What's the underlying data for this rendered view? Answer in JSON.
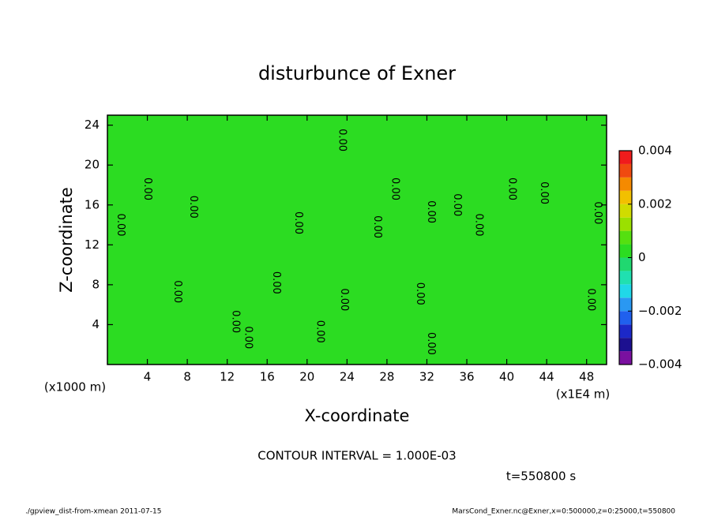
{
  "chart_data": {
    "type": "contour",
    "title": "disturbunce of Exner",
    "xlabel": "X-coordinate",
    "ylabel": "Z-coordinate",
    "x_unit": "(x1E4 m)",
    "y_unit": "(x1000 m)",
    "xlim": [
      0,
      50
    ],
    "xticks": [
      4,
      8,
      12,
      16,
      20,
      24,
      28,
      32,
      36,
      40,
      44,
      48
    ],
    "ylim": [
      0,
      25
    ],
    "yticks": [
      4,
      8,
      12,
      16,
      20,
      24
    ],
    "field_value": 0,
    "colorbar": {
      "bounds": [
        -0.004,
        -0.0035,
        -0.003,
        -0.0025,
        -0.002,
        -0.0015,
        -0.001,
        -0.0005,
        0,
        0.0005,
        0.001,
        0.0015,
        0.002,
        0.0025,
        0.003,
        0.0035,
        0.004
      ],
      "colors": [
        "#7a10a0",
        "#1c1090",
        "#1c28c8",
        "#2060ee",
        "#2a98f2",
        "#20d8e8",
        "#20e0b0",
        "#20d870",
        "#2cdc22",
        "#55e010",
        "#9be000",
        "#d0dc00",
        "#f2c000",
        "#f58a00",
        "#f04a10",
        "#f01c1c",
        "#ffa0a0"
      ],
      "ticks": [
        {
          "value": -0.004,
          "label": "−0.004"
        },
        {
          "value": -0.002,
          "label": "−0.002"
        },
        0,
        0.002,
        0.004
      ]
    },
    "contour_labels": [
      {
        "x": 1.3,
        "y": 14.0,
        "value": 0,
        "label": "0.00"
      },
      {
        "x": 4.0,
        "y": 17.6,
        "value": 0,
        "label": "0.00"
      },
      {
        "x": 8.6,
        "y": 15.8,
        "value": 0,
        "label": "0.00"
      },
      {
        "x": 19.1,
        "y": 14.2,
        "value": 0,
        "label": "0.00"
      },
      {
        "x": 7.0,
        "y": 7.3,
        "value": 0,
        "label": "0.00"
      },
      {
        "x": 12.8,
        "y": 4.3,
        "value": 0,
        "label": "0.00"
      },
      {
        "x": 14.1,
        "y": 2.7,
        "value": 0,
        "label": "0.00"
      },
      {
        "x": 16.9,
        "y": 8.2,
        "value": 0,
        "label": "0.00"
      },
      {
        "x": 23.5,
        "y": 22.5,
        "value": 0,
        "label": "0.00"
      },
      {
        "x": 23.7,
        "y": 6.5,
        "value": 0,
        "label": "0.00"
      },
      {
        "x": 21.3,
        "y": 3.3,
        "value": 0,
        "label": "0.00"
      },
      {
        "x": 27.0,
        "y": 13.8,
        "value": 0,
        "label": "0.00"
      },
      {
        "x": 28.8,
        "y": 17.6,
        "value": 0,
        "label": "0.00"
      },
      {
        "x": 31.3,
        "y": 7.1,
        "value": 0,
        "label": "0.00"
      },
      {
        "x": 32.4,
        "y": 15.3,
        "value": 0,
        "label": "0.00"
      },
      {
        "x": 32.4,
        "y": 2.1,
        "value": 0,
        "label": "0.00"
      },
      {
        "x": 35.0,
        "y": 16.0,
        "value": 0,
        "label": "0.00"
      },
      {
        "x": 37.2,
        "y": 14.0,
        "value": 0,
        "label": "0.00"
      },
      {
        "x": 40.5,
        "y": 17.6,
        "value": 0,
        "label": "0.00"
      },
      {
        "x": 43.7,
        "y": 17.2,
        "value": 0,
        "label": "0.00"
      },
      {
        "x": 48.4,
        "y": 6.5,
        "value": 0,
        "label": "0.00"
      },
      {
        "x": 49.1,
        "y": 15.2,
        "value": 0,
        "label": "0.00"
      }
    ],
    "contour_interval": "CONTOUR INTERVAL = 1.000E-03",
    "time_label": "t=550800 s",
    "footer_left": "./gpview_dist-from-xmean  2011-07-15",
    "footer_right": "MarsCond_Exner.nc@Exner,x=0:500000,z=0:25000,t=550800"
  }
}
